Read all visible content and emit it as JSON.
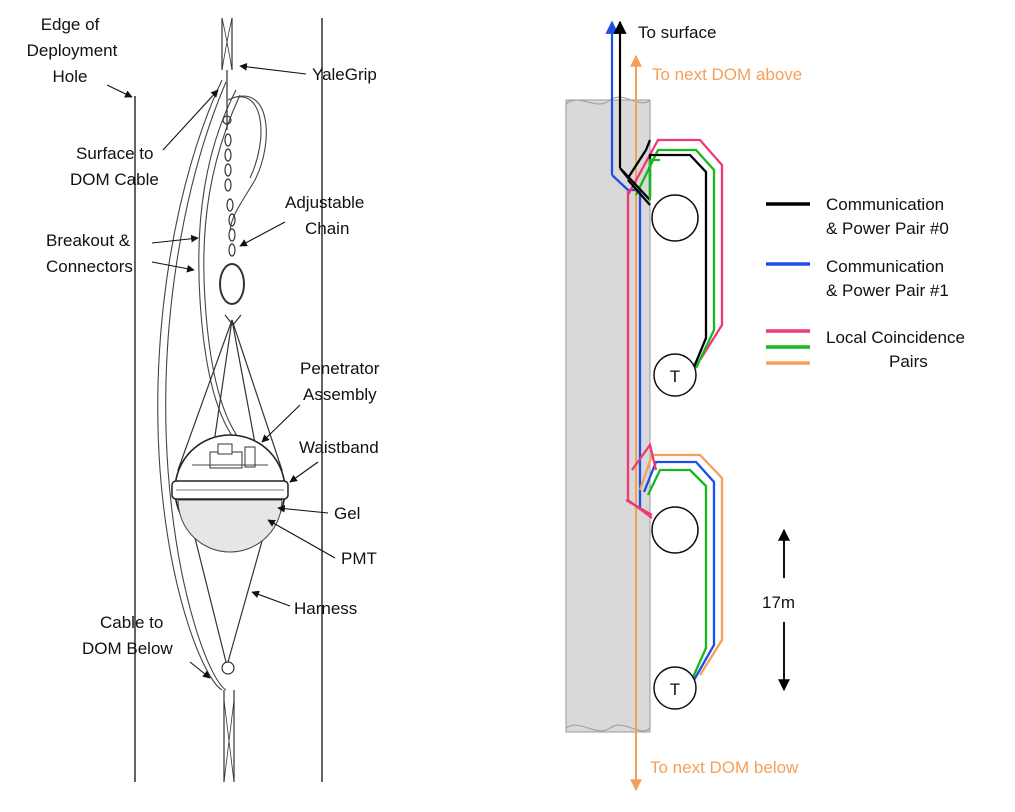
{
  "left_panel": {
    "labels": {
      "edge_hole": [
        "Edge of",
        "Deployment",
        "Hole"
      ],
      "yalegrip": "YaleGrip",
      "surface_cable": [
        "Surface to",
        "DOM Cable"
      ],
      "adjustable_chain": [
        "Adjustable",
        "Chain"
      ],
      "breakout": [
        "Breakout &",
        "Connectors"
      ],
      "penetrator": [
        "Penetrator",
        "Assembly"
      ],
      "waistband": "Waistband",
      "gel": "Gel",
      "pmt": "PMT",
      "harness": "Harness",
      "cable_below": [
        "Cable to",
        "DOM Below"
      ]
    }
  },
  "right_panel": {
    "arrows": {
      "to_surface": "To surface",
      "to_next_above": "To next DOM above",
      "to_next_below": "To next DOM below",
      "spacing": "17m"
    },
    "dom_t_label": "T",
    "legend": [
      {
        "lines": [
          "Communication",
          "& Power Pair #0"
        ],
        "colors": [
          "#000000"
        ]
      },
      {
        "lines": [
          "Communication",
          "& Power Pair #1"
        ],
        "colors": [
          "#1a4fe8"
        ]
      },
      {
        "lines": [
          "Local Coincidence",
          "Pairs"
        ],
        "colors": [
          "#ee3a74",
          "#16b81e",
          "#f5a05a"
        ]
      }
    ],
    "colors": {
      "pair0": "#000000",
      "pair1": "#1a4fe8",
      "lc_pink": "#ee3a74",
      "lc_green": "#16b81e",
      "lc_orange": "#f5a05a",
      "cable": "#d9d9d9"
    }
  }
}
